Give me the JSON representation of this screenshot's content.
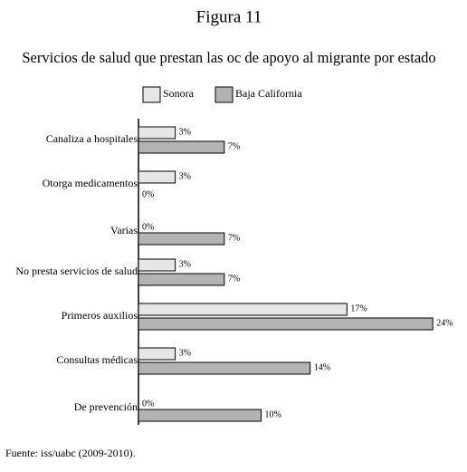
{
  "chart_data": {
    "type": "hbar",
    "title": "Figura 11",
    "subtitle": "Servicios de salud que prestan las oc de apoyo al migrante por estado",
    "categories": [
      "Canaliza a hospitales",
      "Otorga medicamentos",
      "Varias",
      "No presta servicios de salud",
      "Primeros auxilios",
      "Consultas médicas",
      "De prevención"
    ],
    "series": [
      {
        "name": "Sonora",
        "color": "#e6e6e6",
        "values": [
          3,
          3,
          0,
          3,
          17,
          3,
          0
        ],
        "value_labels": [
          "3%",
          "3%",
          "0%",
          "3%",
          "17%",
          "3%",
          "0%"
        ]
      },
      {
        "name": "Baja California",
        "color": "#b3b3b3",
        "values": [
          7,
          0,
          7,
          7,
          24,
          14,
          10
        ],
        "value_labels": [
          "7%",
          "0%",
          "7%",
          "7%",
          "24%",
          "14%",
          "10%"
        ]
      }
    ],
    "source": "Fuente: iss/uabc (2009-2010)."
  }
}
